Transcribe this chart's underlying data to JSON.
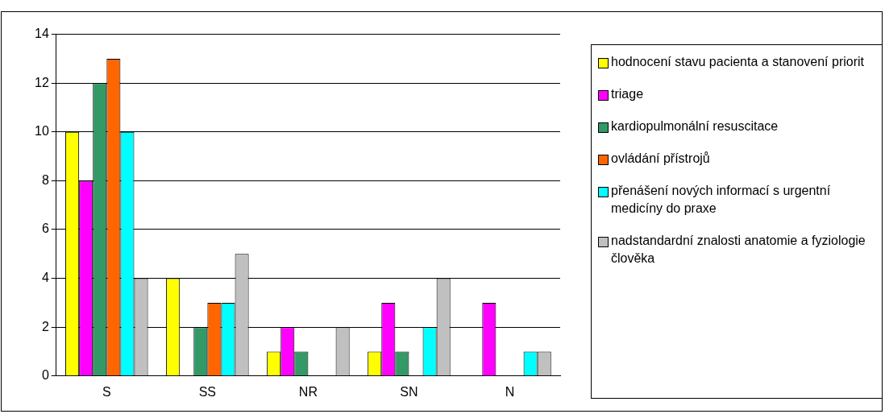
{
  "chart_data": {
    "type": "bar",
    "categories": [
      "S",
      "SS",
      "NR",
      "SN",
      "N"
    ],
    "series": [
      {
        "name": "hodnocení stavu pacienta a stanovení priorit",
        "color": "#ffff00",
        "values": [
          10,
          4,
          1,
          1,
          0
        ]
      },
      {
        "name": "triage",
        "color": "#ff00ff",
        "values": [
          8,
          0,
          2,
          3,
          3
        ]
      },
      {
        "name": "kardiopulmonální resuscitace",
        "color": "#339966",
        "values": [
          12,
          2,
          1,
          1,
          0
        ]
      },
      {
        "name": "ovládání přístrojů",
        "color": "#ff6600",
        "values": [
          13,
          3,
          0,
          0,
          0
        ]
      },
      {
        "name": "přenášení nových informací s urgentní medicíny do praxe",
        "color": "#00ffff",
        "values": [
          10,
          3,
          0,
          2,
          1
        ]
      },
      {
        "name": "nadstandardní znalosti anatomie a fyziologie člověka",
        "color": "#c0c0c0",
        "values": [
          4,
          5,
          2,
          4,
          1
        ]
      }
    ],
    "ylim": [
      0,
      14
    ],
    "yticks": [
      0,
      2,
      4,
      6,
      8,
      10,
      12,
      14
    ],
    "grid": "y",
    "legend": "right"
  }
}
